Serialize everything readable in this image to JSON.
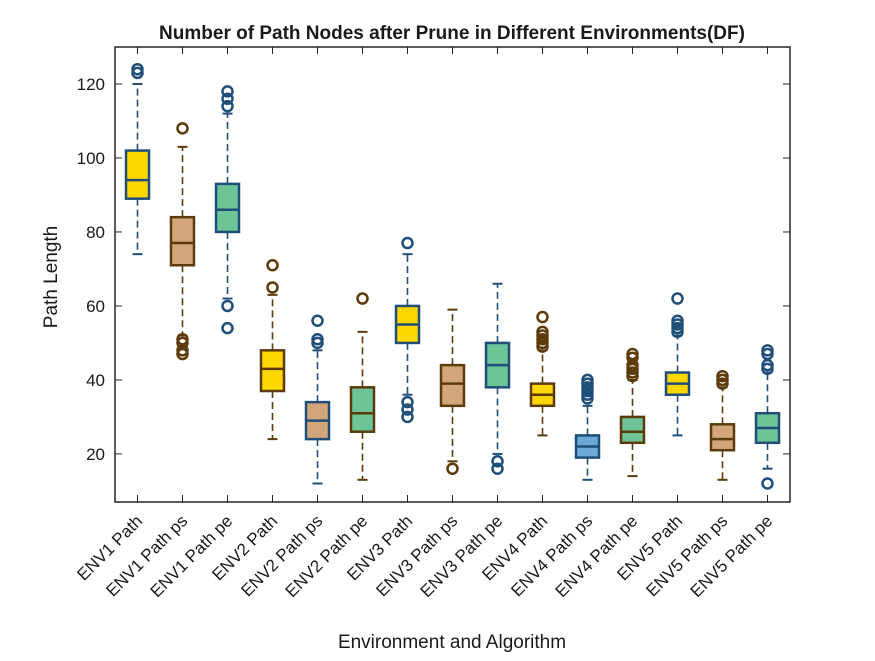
{
  "chart_data": {
    "type": "box",
    "title": "Number of Path Nodes after Prune in Different Environments(DF)",
    "xlabel": "Environment and Algorithm",
    "ylabel": "Path Length",
    "ylim": [
      7,
      130
    ],
    "yticks": [
      20,
      40,
      60,
      80,
      100,
      120
    ],
    "grid": false,
    "categories": [
      "ENV1 Path",
      "ENV1 Path ps",
      "ENV1 Path pe",
      "ENV2 Path",
      "ENV2 Path ps",
      "ENV2 Path pe",
      "ENV3 Path",
      "ENV3 Path ps",
      "ENV3 Path pe",
      "ENV4 Path",
      "ENV4 Path ps",
      "ENV4 Path pe",
      "ENV5 Path",
      "ENV5 Path ps",
      "ENV5 Path pe"
    ],
    "boxes": [
      {
        "whisker_low": 74,
        "q1": 89,
        "median": 94,
        "q3": 102,
        "whisker_high": 120,
        "outliers": [
          123,
          124
        ],
        "fill": "#ffd700",
        "edge": "#1f4e79"
      },
      {
        "whisker_low": 52,
        "q1": 71,
        "median": 77,
        "q3": 84,
        "whisker_high": 103,
        "outliers": [
          47,
          48,
          50,
          51,
          108
        ],
        "fill": "#d2a679",
        "edge": "#5c3a0a"
      },
      {
        "whisker_low": 62,
        "q1": 80,
        "median": 86,
        "q3": 93,
        "whisker_high": 112,
        "outliers": [
          54,
          60,
          114,
          116,
          118
        ],
        "fill": "#6cc497",
        "edge": "#1f4e79"
      },
      {
        "whisker_low": 24,
        "q1": 37,
        "median": 43,
        "q3": 48,
        "whisker_high": 63,
        "outliers": [
          65,
          71
        ],
        "fill": "#ffd700",
        "edge": "#5c3a0a"
      },
      {
        "whisker_low": 12,
        "q1": 24,
        "median": 29,
        "q3": 34,
        "whisker_high": 48,
        "outliers": [
          50,
          51,
          56
        ],
        "fill": "#d2a679",
        "edge": "#1f4e79"
      },
      {
        "whisker_low": 13,
        "q1": 26,
        "median": 31,
        "q3": 38,
        "whisker_high": 53,
        "outliers": [
          62
        ],
        "fill": "#6cc497",
        "edge": "#5c3a0a"
      },
      {
        "whisker_low": 36,
        "q1": 50,
        "median": 55,
        "q3": 60,
        "whisker_high": 74,
        "outliers": [
          30,
          32,
          34,
          77
        ],
        "fill": "#ffd700",
        "edge": "#1f4e79"
      },
      {
        "whisker_low": 18,
        "q1": 33,
        "median": 39,
        "q3": 44,
        "whisker_high": 59,
        "outliers": [
          16
        ],
        "fill": "#d2a679",
        "edge": "#5c3a0a"
      },
      {
        "whisker_low": 20,
        "q1": 38,
        "median": 44,
        "q3": 50,
        "whisker_high": 66,
        "outliers": [
          16,
          18
        ],
        "fill": "#6cc497",
        "edge": "#1f4e79"
      },
      {
        "whisker_low": 25,
        "q1": 33,
        "median": 36,
        "q3": 39,
        "whisker_high": 48,
        "outliers": [
          49,
          50,
          51,
          52,
          53,
          57
        ],
        "fill": "#ffd700",
        "edge": "#5c3a0a"
      },
      {
        "whisker_low": 13,
        "q1": 19,
        "median": 22,
        "q3": 25,
        "whisker_high": 33,
        "outliers": [
          35,
          36,
          37,
          38,
          39,
          40
        ],
        "fill": "#6da9d6",
        "edge": "#1f4e79"
      },
      {
        "whisker_low": 14,
        "q1": 23,
        "median": 26,
        "q3": 30,
        "whisker_high": 40,
        "outliers": [
          41,
          42,
          43,
          44,
          46,
          47
        ],
        "fill": "#6cc497",
        "edge": "#5c3a0a"
      },
      {
        "whisker_low": 25,
        "q1": 36,
        "median": 39,
        "q3": 42,
        "whisker_high": 52,
        "outliers": [
          53,
          54,
          55,
          56,
          62
        ],
        "fill": "#ffd700",
        "edge": "#1f4e79"
      },
      {
        "whisker_low": 13,
        "q1": 21,
        "median": 24,
        "q3": 28,
        "whisker_high": 38,
        "outliers": [
          39,
          40,
          41
        ],
        "fill": "#d2a679",
        "edge": "#5c3a0a"
      },
      {
        "whisker_low": 16,
        "q1": 23,
        "median": 27,
        "q3": 31,
        "whisker_high": 42,
        "outliers": [
          12,
          43,
          44,
          47,
          48
        ],
        "fill": "#6cc497",
        "edge": "#1f4e79"
      }
    ]
  }
}
